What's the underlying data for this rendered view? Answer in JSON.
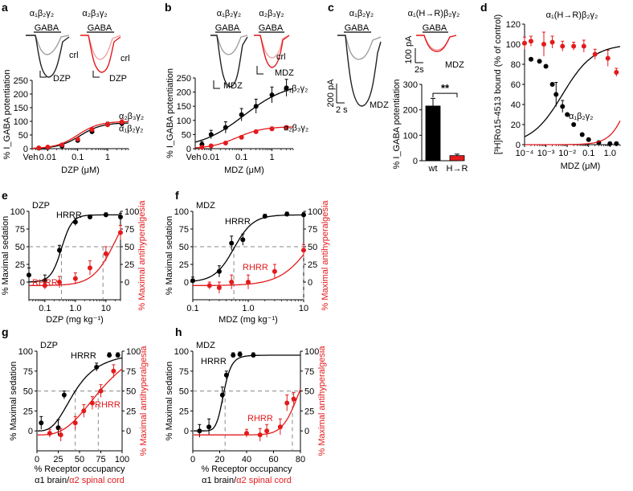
{
  "colors": {
    "wt": "#000000",
    "mut": "#e31a1c",
    "ctrl_wt": "#9a9a9a",
    "ctrl_mut": "#f39a9a",
    "dash": "#888888"
  },
  "chart_data": [
    {
      "panel": "a",
      "type": "line",
      "traces": {
        "left_title": "α₁β₂γ₂",
        "right_title": "α₂β₃γ₂",
        "bar_label": "GABA",
        "ctrl_label": "crl",
        "drug_label": "DZP"
      },
      "ylabel": "% I_GABA potentiation",
      "xlabel": "DZP (μM)",
      "xscale": "log",
      "xlim": [
        0.003,
        5
      ],
      "ylim": [
        0,
        250
      ],
      "x_ticks": [
        0.01,
        0.1,
        1
      ],
      "y_ticks": [
        0,
        50,
        100,
        150,
        200,
        250
      ],
      "x_tick_labels": [
        "0.01",
        "0.1",
        "1"
      ],
      "y_tick_labels": [
        "0",
        "50",
        "100",
        "150",
        "200",
        "250"
      ],
      "veh_label": "Veh",
      "series": [
        {
          "name": "α₁β₂γ₂",
          "color": "#000000",
          "x": [
            0.005,
            0.01,
            0.03,
            0.1,
            0.3,
            1,
            3
          ],
          "y": [
            2,
            4,
            10,
            30,
            62,
            88,
            92
          ],
          "err": [
            2,
            3,
            4,
            5,
            7,
            9,
            10
          ],
          "fit": {
            "bottom": 0,
            "top": 95,
            "ec50": 0.12,
            "hill": 1.2
          }
        },
        {
          "name": "α₂β₃γ₂",
          "color": "#e31a1c",
          "x": [
            0.005,
            0.01,
            0.03,
            0.1,
            0.3,
            1,
            3
          ],
          "y": [
            3,
            6,
            14,
            35,
            70,
            88,
            97
          ],
          "err": [
            2,
            3,
            4,
            5,
            6,
            8,
            9
          ],
          "fit": {
            "bottom": 0,
            "top": 100,
            "ec50": 0.1,
            "hill": 1.2
          }
        }
      ]
    },
    {
      "panel": "b",
      "type": "line",
      "traces": {
        "left_title": "α₁β₂γ₂",
        "right_title": "α₂β₃γ₂",
        "bar_label": "GABA",
        "drug_label": "MDZ"
      },
      "ylabel": "% I_GABA potentiation",
      "xlabel": "MDZ (μM)",
      "xscale": "log",
      "xlim": [
        0.003,
        5
      ],
      "ylim": [
        0,
        250
      ],
      "x_ticks": [
        0.01,
        0.1,
        1
      ],
      "y_ticks": [
        0,
        50,
        100,
        150,
        200,
        250
      ],
      "x_tick_labels": [
        "0.01",
        "0.1",
        "1"
      ],
      "y_tick_labels": [
        "0",
        "50",
        "100",
        "150",
        "200",
        "250"
      ],
      "veh_label": "Veh",
      "series": [
        {
          "name": "α₁β₂γ₂",
          "color": "#000000",
          "x": [
            0.005,
            0.01,
            0.03,
            0.1,
            0.3,
            1,
            3
          ],
          "y": [
            15,
            50,
            75,
            120,
            150,
            190,
            215
          ],
          "err": [
            10,
            15,
            20,
            22,
            25,
            28,
            30
          ],
          "fit": {
            "bottom": 0,
            "top": 235,
            "ec50": 0.12,
            "hill": 0.6
          }
        },
        {
          "name": "α₂β₃γ₂",
          "color": "#e31a1c",
          "x": [
            0.005,
            0.01,
            0.03,
            0.1,
            0.3,
            1,
            3
          ],
          "y": [
            5,
            10,
            20,
            40,
            60,
            70,
            75
          ],
          "err": [
            3,
            3,
            4,
            5,
            6,
            7,
            6
          ],
          "fit": {
            "bottom": 0,
            "top": 78,
            "ec50": 0.07,
            "hill": 1.0
          }
        }
      ]
    },
    {
      "panel": "c",
      "type": "bar",
      "traces": {
        "left_title": "α₁β₂γ₂",
        "right_title": "α₁(H→R)β₂γ₂",
        "bar_label": "GABA",
        "drug_label": "MDZ",
        "scale_left_current": "200 pA",
        "scale_left_time": "2 s",
        "scale_right_current": "100 pA",
        "scale_right_time": "2s"
      },
      "ylabel": "% I_GABA potentiation",
      "ylim": [
        0,
        300
      ],
      "y_ticks": [
        0,
        100,
        200,
        300
      ],
      "y_tick_labels": [
        "0",
        "100",
        "200",
        "300"
      ],
      "categories": [
        "wt",
        "H→R"
      ],
      "values": [
        215,
        20
      ],
      "err": [
        30,
        6
      ],
      "significance": "**"
    },
    {
      "panel": "d",
      "type": "scatter",
      "title": "α₁(H→R)β₂γ₂",
      "ylabel": "[³H]Ro15-4513 bound (% of control)",
      "xlabel": "MDZ (μM)",
      "xscale": "log",
      "xlim": [
        0.0001,
        3
      ],
      "ylim": [
        0,
        120
      ],
      "x_ticks": [
        0.0001,
        0.001,
        0.01,
        0.1,
        1
      ],
      "y_ticks": [
        0,
        20,
        40,
        60,
        80,
        100,
        120
      ],
      "x_tick_labels": [
        "10⁻⁴",
        "10⁻³",
        "10⁻²",
        "0.1",
        "1.0"
      ],
      "y_tick_labels": [
        "0",
        "20",
        "40",
        "60",
        "80",
        "100",
        "120"
      ],
      "series": [
        {
          "name": "α₁β₂γ₂",
          "color": "#000000",
          "x": [
            0.0002,
            0.0005,
            0.001,
            0.002,
            0.003,
            0.006,
            0.01,
            0.02,
            0.05,
            0.1,
            0.3,
            1,
            2
          ],
          "y": [
            85,
            83,
            78,
            60,
            50,
            38,
            30,
            20,
            10,
            5,
            2,
            1,
            1
          ],
          "err": [
            0,
            0,
            0,
            0,
            12,
            6,
            0,
            0,
            0,
            0,
            0,
            0,
            0
          ],
          "fit": {
            "bottom": 0,
            "top": 100,
            "ec50": 0.006,
            "hill": 0.6
          }
        },
        {
          "name": "α₁(H→R)β₂γ₂",
          "color": "#e31a1c",
          "x": [
            0.0001,
            0.0002,
            0.0008,
            0.002,
            0.006,
            0.02,
            0.06,
            0.2,
            0.8,
            2
          ],
          "y": [
            101,
            103,
            100,
            102,
            98,
            98,
            98,
            90,
            86,
            72
          ],
          "err": [
            6,
            5,
            12,
            6,
            5,
            4,
            6,
            5,
            8,
            4
          ],
          "fit": {
            "bottom": 0,
            "top": 103,
            "ec50": 10,
            "hill": 1.0
          }
        }
      ]
    },
    {
      "panel": "e",
      "type": "line",
      "drug": "DZP",
      "ylabel": "% Maximal sedation",
      "ylabel_right": "% Maximal antihyperalgesia",
      "xlabel": "DZP (mg kg⁻¹)",
      "xscale": "log",
      "xlim": [
        0.03,
        30
      ],
      "ylim": [
        -25,
        100
      ],
      "x_ticks": [
        0.1,
        1,
        10
      ],
      "x_tick_labels": [
        "0.1",
        "1.0",
        "10"
      ],
      "y_ticks": [
        0,
        25,
        50,
        75,
        100
      ],
      "y_tick_labels": [
        "0",
        "25",
        "50",
        "75",
        "100"
      ],
      "y_ticks_right": [
        0,
        25,
        50,
        75,
        100
      ],
      "y_tick_labels_right": [
        "0",
        "25",
        "50",
        "75",
        "100"
      ],
      "series": [
        {
          "name": "HRRR",
          "color": "#000000",
          "x": [
            0.03,
            0.1,
            0.3,
            1,
            3,
            10,
            30
          ],
          "y": [
            10,
            2,
            45,
            85,
            92,
            95,
            92
          ],
          "err": [
            10,
            8,
            7,
            5,
            3,
            3,
            5
          ],
          "fit": {
            "bottom": 0,
            "top": 95,
            "ec50": 0.35,
            "hill": 2.5
          }
        },
        {
          "name": "RHRR",
          "color": "#e31a1c",
          "x": [
            0.1,
            0.3,
            1,
            3,
            10,
            30
          ],
          "y": [
            -5,
            0,
            5,
            20,
            40,
            70
          ],
          "err": [
            5,
            8,
            8,
            10,
            10,
            10
          ],
          "fit": {
            "bottom": -5,
            "top": 120,
            "ec50": 20,
            "hill": 1.2
          }
        }
      ],
      "ec50_markers": [
        0.35,
        8
      ]
    },
    {
      "panel": "f",
      "type": "line",
      "drug": "MDZ",
      "ylabel": "% Maximal sedation",
      "ylabel_right": "% Maximal antihyperalgesia",
      "xlabel": "MDZ (mg kg⁻¹)",
      "xscale": "log",
      "xlim": [
        0.1,
        10
      ],
      "ylim": [
        -25,
        100
      ],
      "x_ticks": [
        0.1,
        1,
        10
      ],
      "x_tick_labels": [
        "0.1",
        "1.0",
        "10"
      ],
      "y_ticks": [
        0,
        25,
        50,
        75,
        100
      ],
      "y_tick_labels": [
        "0",
        "25",
        "50",
        "75",
        "100"
      ],
      "y_ticks_right": [
        0,
        25,
        50,
        75,
        100
      ],
      "y_tick_labels_right": [
        "0",
        "25",
        "50",
        "75",
        "100"
      ],
      "series": [
        {
          "name": "HRRR",
          "color": "#000000",
          "x": [
            0.1,
            0.3,
            0.5,
            0.8,
            2,
            5,
            10
          ],
          "y": [
            2,
            15,
            55,
            60,
            93,
            96,
            95
          ],
          "err": [
            5,
            8,
            10,
            8,
            3,
            3,
            3
          ],
          "fit": {
            "bottom": 0,
            "top": 95,
            "ec50": 0.55,
            "hill": 2.5
          }
        },
        {
          "name": "RHRR",
          "color": "#e31a1c",
          "x": [
            0.2,
            0.3,
            0.5,
            1,
            3,
            10
          ],
          "y": [
            -5,
            -8,
            0,
            0,
            15,
            45
          ],
          "err": [
            5,
            8,
            10,
            10,
            10,
            8
          ],
          "fit": {
            "bottom": -5,
            "top": 120,
            "ec50": 15,
            "hill": 1.5
          }
        }
      ],
      "ec50_markers": [
        0.55,
        10
      ]
    },
    {
      "panel": "g",
      "type": "line",
      "drug": "DZP",
      "ylabel": "% Maximal sedation",
      "ylabel_right": "% Maximal antihyperalgesia",
      "xlabel": "% Receptor occupancy",
      "xlabel_line2_black": "α1 brain/",
      "xlabel_line2_red": "α2 spinal cord",
      "xlim": [
        0,
        100
      ],
      "ylim": [
        -25,
        100
      ],
      "x_ticks": [
        0,
        25,
        50,
        75,
        100
      ],
      "x_tick_labels": [
        "0",
        "25",
        "50",
        "75",
        "100"
      ],
      "y_ticks": [
        0,
        25,
        50,
        75,
        100
      ],
      "y_tick_labels": [
        "0",
        "25",
        "50",
        "75",
        "100"
      ],
      "y_ticks_right": [
        0,
        25,
        50,
        75,
        100
      ],
      "y_tick_labels_right": [
        "0",
        "25",
        "50",
        "75",
        "100"
      ],
      "series": [
        {
          "name": "HRRR",
          "color": "#000000",
          "x": [
            5,
            25,
            32,
            70,
            85,
            95
          ],
          "y": [
            10,
            4,
            45,
            80,
            95,
            95
          ],
          "err": [
            8,
            10,
            5,
            5,
            3,
            3
          ],
          "fit": {
            "bottom": 0,
            "top": 100,
            "ec50": 45,
            "hill": 3
          }
        },
        {
          "name": "RHRR",
          "color": "#e31a1c",
          "x": [
            15,
            28,
            45,
            55,
            65,
            75,
            90
          ],
          "y": [
            -3,
            -5,
            10,
            25,
            35,
            50,
            75
          ],
          "err": [
            5,
            8,
            8,
            8,
            8,
            8,
            8
          ],
          "fit": {
            "bottom": -5,
            "top": 120,
            "ec50": 80,
            "hill": 3
          }
        }
      ],
      "ec50_markers": [
        45,
        72
      ]
    },
    {
      "panel": "h",
      "type": "line",
      "drug": "MDZ",
      "ylabel": "% Maximal sedation",
      "ylabel_right": "% Maximal antihyperalgesia",
      "xlabel": "% Receptor occupancy",
      "xlabel_line2_black": "α1 brain/",
      "xlabel_line2_red": "α2 spinal cord",
      "xlim": [
        0,
        80
      ],
      "ylim": [
        -25,
        100
      ],
      "x_ticks": [
        0,
        20,
        40,
        60,
        80
      ],
      "x_tick_labels": [
        "0",
        "20",
        "40",
        "60",
        "80"
      ],
      "y_ticks": [
        0,
        25,
        50,
        75,
        100
      ],
      "y_tick_labels": [
        "0",
        "25",
        "50",
        "75",
        "100"
      ],
      "y_ticks_right": [
        0,
        25,
        50,
        75,
        100
      ],
      "y_tick_labels_right": [
        "0",
        "25",
        "50",
        "75",
        "100"
      ],
      "series": [
        {
          "name": "HRRR",
          "color": "#000000",
          "x": [
            5,
            12,
            22,
            25,
            30,
            35,
            45
          ],
          "y": [
            0,
            5,
            45,
            70,
            95,
            96,
            95
          ],
          "err": [
            8,
            10,
            10,
            5,
            3,
            3,
            3
          ],
          "fit": {
            "bottom": 0,
            "top": 95,
            "ec50": 23,
            "hill": 8
          }
        },
        {
          "name": "RHRR",
          "color": "#e31a1c",
          "x": [
            40,
            50,
            55,
            65,
            70,
            75
          ],
          "y": [
            -3,
            -5,
            0,
            5,
            35,
            40
          ],
          "err": [
            5,
            8,
            8,
            10,
            10,
            8
          ],
          "fit": {
            "bottom": -5,
            "top": 110,
            "ec50": 80,
            "hill": 12
          }
        }
      ],
      "ec50_markers": [
        24,
        74
      ]
    }
  ]
}
